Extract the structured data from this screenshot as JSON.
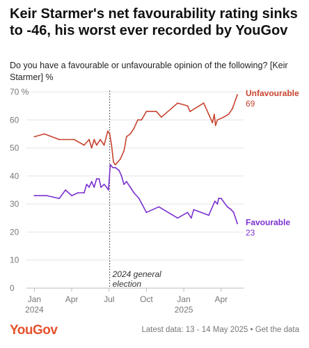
{
  "header": {
    "title": "Keir Starmer's net favourability rating sinks to -46, his worst ever recorded by YouGov",
    "subtitle": "Do you have a favourable or unfavourable opinion of the following? [Keir Starmer] %"
  },
  "footer": {
    "logo": "YouGov",
    "latest_data": "Latest data: 13 - 14 May 2025",
    "separator": " • ",
    "get_data_link": "Get the data"
  },
  "colors": {
    "unfavourable": "#c7432f",
    "favourable": "#7a2fd0",
    "grid": "#e4e4e4",
    "axis_text": "#777777"
  },
  "chart_data": {
    "type": "line",
    "x_is_month_index": "months since Jan 2024",
    "x_ticks": [
      {
        "x": 0,
        "label": "Jan",
        "sublabel": "2024"
      },
      {
        "x": 3,
        "label": "Apr",
        "sublabel": ""
      },
      {
        "x": 6,
        "label": "Jul",
        "sublabel": ""
      },
      {
        "x": 9,
        "label": "Oct",
        "sublabel": ""
      },
      {
        "x": 12,
        "label": "Jan",
        "sublabel": "2025"
      },
      {
        "x": 15,
        "label": "Apr",
        "sublabel": ""
      }
    ],
    "xlim": [
      -0.3,
      16.8
    ],
    "ylim": [
      0,
      70
    ],
    "y_ticks": [
      0,
      10,
      20,
      30,
      40,
      50,
      60,
      70
    ],
    "y_tick_labels": [
      "0",
      "10",
      "20",
      "30",
      "40",
      "50",
      "60",
      "70 %"
    ],
    "grid": true,
    "series": [
      {
        "name": "Unfavourable",
        "end_value_label": "69",
        "color": "#c7432f",
        "points": [
          [
            0,
            54
          ],
          [
            0.8,
            55
          ],
          [
            2,
            53
          ],
          [
            3.2,
            53
          ],
          [
            4,
            51
          ],
          [
            4.4,
            53
          ],
          [
            4.6,
            50
          ],
          [
            4.8,
            53
          ],
          [
            5.0,
            51
          ],
          [
            5.3,
            53
          ],
          [
            5.6,
            51
          ],
          [
            5.9,
            56
          ],
          [
            6.05,
            55
          ],
          [
            6.2,
            51
          ],
          [
            6.35,
            45
          ],
          [
            6.5,
            44
          ],
          [
            6.9,
            46
          ],
          [
            7.2,
            49
          ],
          [
            7.4,
            54
          ],
          [
            7.7,
            55
          ],
          [
            8.0,
            57
          ],
          [
            8.3,
            60
          ],
          [
            8.6,
            60
          ],
          [
            9.0,
            63
          ],
          [
            9.8,
            63
          ],
          [
            10.2,
            61
          ],
          [
            11.5,
            66
          ],
          [
            12.3,
            65
          ],
          [
            12.5,
            63
          ],
          [
            13.6,
            66
          ],
          [
            14.0,
            62
          ],
          [
            14.3,
            59
          ],
          [
            14.45,
            62
          ],
          [
            14.55,
            58
          ],
          [
            14.7,
            60
          ],
          [
            15.2,
            61
          ],
          [
            15.6,
            62
          ],
          [
            15.9,
            64
          ],
          [
            16.3,
            69
          ]
        ]
      },
      {
        "name": "Favourable",
        "end_value_label": "23",
        "color": "#7a2fd0",
        "points": [
          [
            0,
            33
          ],
          [
            1,
            33
          ],
          [
            2,
            32
          ],
          [
            2.5,
            35
          ],
          [
            3.0,
            33
          ],
          [
            3.5,
            34
          ],
          [
            4.0,
            34
          ],
          [
            4.2,
            37
          ],
          [
            4.4,
            36
          ],
          [
            4.6,
            38
          ],
          [
            4.8,
            36
          ],
          [
            5.0,
            39
          ],
          [
            5.2,
            39
          ],
          [
            5.35,
            36
          ],
          [
            5.6,
            37
          ],
          [
            5.8,
            36
          ],
          [
            5.95,
            35
          ],
          [
            6.1,
            44
          ],
          [
            6.3,
            43
          ],
          [
            6.5,
            43
          ],
          [
            6.8,
            42
          ],
          [
            7.0,
            40
          ],
          [
            7.2,
            37
          ],
          [
            7.4,
            38
          ],
          [
            7.7,
            36
          ],
          [
            8.0,
            34
          ],
          [
            8.4,
            32
          ],
          [
            9.0,
            27
          ],
          [
            10.0,
            29
          ],
          [
            11.5,
            25
          ],
          [
            12.3,
            27
          ],
          [
            12.6,
            25
          ],
          [
            12.8,
            28
          ],
          [
            14.0,
            26
          ],
          [
            14.5,
            31
          ],
          [
            14.7,
            30
          ],
          [
            14.8,
            32
          ],
          [
            15.0,
            32
          ],
          [
            15.5,
            29
          ],
          [
            15.8,
            28
          ],
          [
            16.0,
            27
          ],
          [
            16.3,
            23
          ]
        ]
      }
    ],
    "annotations": [
      {
        "x": 6.05,
        "line1": "2024 general",
        "line2": "election"
      }
    ]
  }
}
